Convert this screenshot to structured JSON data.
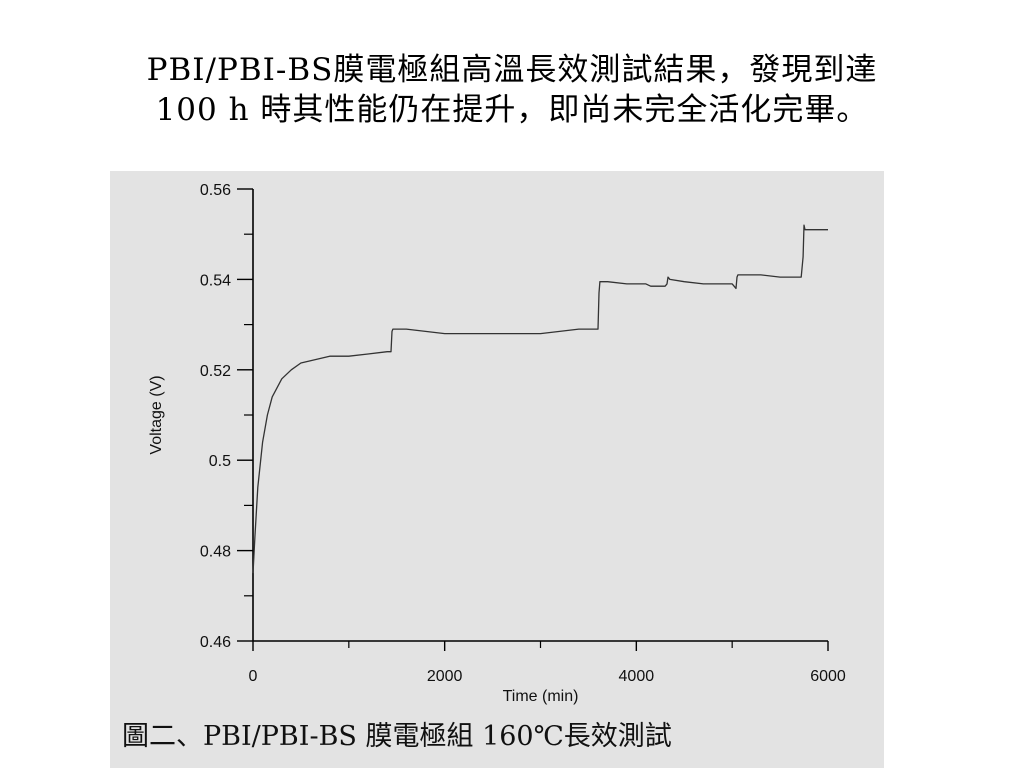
{
  "slide": {
    "title_line1": "PBI/PBI-BS膜電極組高溫長效測試結果，發現到達",
    "title_line2": "100 h 時其性能仍在提升，即尚未完全活化完畢。"
  },
  "figure": {
    "caption": "圖二、PBI/PBI-BS 膜電極組 160℃長效測試"
  },
  "chart_data": {
    "type": "line",
    "title": "",
    "xlabel": "Time (min)",
    "ylabel": "Voltage (V)",
    "xlim": [
      0,
      6000
    ],
    "ylim": [
      0.46,
      0.56
    ],
    "x_ticks": [
      0,
      2000,
      4000,
      6000
    ],
    "x_tick_labels": [
      "0",
      "2000",
      "4000",
      "6000"
    ],
    "y_ticks": [
      0.46,
      0.48,
      0.5,
      0.52,
      0.54,
      0.56
    ],
    "y_tick_labels": [
      "0.46",
      "0.48",
      "0.5",
      "0.52",
      "0.54",
      "0.56"
    ],
    "grid": false,
    "legend": "none",
    "series": [
      {
        "color": "#333333",
        "x": [
          0,
          20,
          50,
          100,
          150,
          200,
          300,
          400,
          500,
          600,
          700,
          800,
          1000,
          1200,
          1400,
          1440,
          1450,
          1460,
          1600,
          1800,
          2000,
          2200,
          2500,
          2800,
          3000,
          3200,
          3400,
          3600,
          3610,
          3620,
          3700,
          3900,
          4100,
          4150,
          4300,
          4320,
          4330,
          4350,
          4500,
          4700,
          4900,
          5000,
          5040,
          5050,
          5060,
          5300,
          5500,
          5720,
          5740,
          5750,
          5760,
          6000
        ],
        "y": [
          0.475,
          0.483,
          0.494,
          0.504,
          0.51,
          0.514,
          0.518,
          0.52,
          0.5215,
          0.522,
          0.5225,
          0.523,
          0.523,
          0.5235,
          0.524,
          0.524,
          0.5285,
          0.529,
          0.529,
          0.5285,
          0.528,
          0.528,
          0.528,
          0.528,
          0.528,
          0.5285,
          0.529,
          0.529,
          0.537,
          0.5395,
          0.5395,
          0.539,
          0.539,
          0.5385,
          0.5385,
          0.539,
          0.5405,
          0.54,
          0.5395,
          0.539,
          0.539,
          0.539,
          0.538,
          0.5405,
          0.541,
          0.541,
          0.5405,
          0.5405,
          0.545,
          0.552,
          0.551,
          0.551
        ]
      }
    ]
  }
}
